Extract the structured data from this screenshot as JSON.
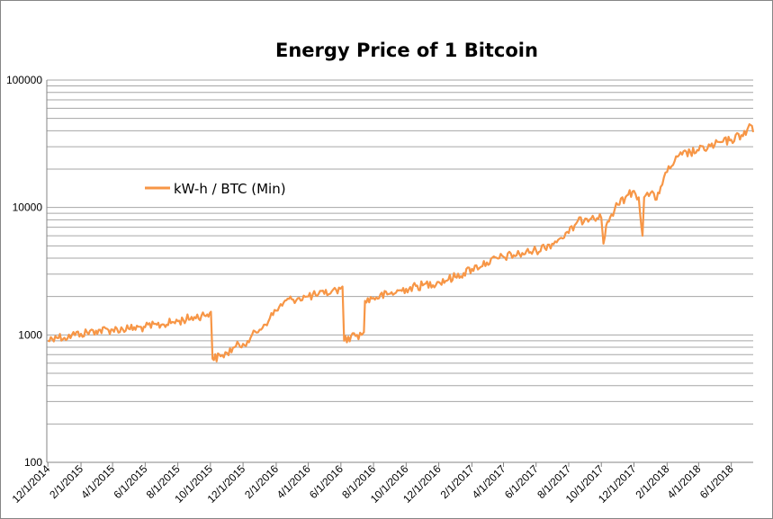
{
  "chart_data": {
    "type": "line",
    "title": "Energy Price of 1 Bitcoin",
    "xlabel": "",
    "ylabel": "",
    "yscale": "log",
    "ylim": [
      100,
      100000
    ],
    "y_ticks": [
      "100",
      "1000",
      "10000",
      "100000"
    ],
    "x_range": [
      "11/29/2014",
      "7/12/2018"
    ],
    "x_ticks": [
      "12/1/2014",
      "2/1/2015",
      "4/1/2015",
      "6/1/2015",
      "8/1/2015",
      "10/1/2015",
      "12/1/2015",
      "2/1/2016",
      "4/1/2016",
      "6/1/2016",
      "8/1/2016",
      "10/1/2016",
      "12/1/2016",
      "2/1/2017",
      "4/1/2017",
      "6/1/2017",
      "8/1/2017",
      "10/1/2017",
      "12/1/2017",
      "2/1/2018",
      "4/1/2018",
      "6/1/2018"
    ],
    "grid": true,
    "legend_position": "left",
    "series": [
      {
        "name": "kW-h / BTC (Min)",
        "color": "#F79646",
        "points": [
          [
            "2014-12-01",
            900
          ],
          [
            "2014-12-15",
            980
          ],
          [
            "2015-01-01",
            950
          ],
          [
            "2015-01-15",
            1000
          ],
          [
            "2015-02-01",
            1020
          ],
          [
            "2015-03-01",
            1080
          ],
          [
            "2015-04-01",
            1100
          ],
          [
            "2015-05-01",
            1120
          ],
          [
            "2015-06-01",
            1150
          ],
          [
            "2015-07-01",
            1200
          ],
          [
            "2015-08-01",
            1280
          ],
          [
            "2015-09-01",
            1380
          ],
          [
            "2015-09-25",
            1450
          ],
          [
            "2015-10-02",
            1520
          ],
          [
            "2015-10-05",
            650
          ],
          [
            "2015-10-20",
            680
          ],
          [
            "2015-11-01",
            720
          ],
          [
            "2015-11-15",
            800
          ],
          [
            "2015-12-01",
            850
          ],
          [
            "2015-12-15",
            950
          ],
          [
            "2016-01-01",
            1100
          ],
          [
            "2016-01-20",
            1350
          ],
          [
            "2016-02-01",
            1550
          ],
          [
            "2016-02-15",
            1800
          ],
          [
            "2016-03-01",
            1900
          ],
          [
            "2016-03-15",
            1950
          ],
          [
            "2016-04-01",
            2000
          ],
          [
            "2016-04-15",
            2050
          ],
          [
            "2016-05-01",
            2100
          ],
          [
            "2016-05-15",
            2200
          ],
          [
            "2016-05-31",
            2300
          ],
          [
            "2016-06-04",
            2400
          ],
          [
            "2016-06-07",
            900
          ],
          [
            "2016-06-20",
            980
          ],
          [
            "2016-07-01",
            1000
          ],
          [
            "2016-07-10",
            1000
          ],
          [
            "2016-07-14",
            1050
          ],
          [
            "2016-07-16",
            1850
          ],
          [
            "2016-08-01",
            1950
          ],
          [
            "2016-09-01",
            2100
          ],
          [
            "2016-10-01",
            2300
          ],
          [
            "2016-11-01",
            2450
          ],
          [
            "2016-12-01",
            2600
          ],
          [
            "2017-01-01",
            2850
          ],
          [
            "2017-02-01",
            3300
          ],
          [
            "2017-03-01",
            3700
          ],
          [
            "2017-04-01",
            4100
          ],
          [
            "2017-05-01",
            4300
          ],
          [
            "2017-06-01",
            4600
          ],
          [
            "2017-07-01",
            5200
          ],
          [
            "2017-07-15",
            5700
          ],
          [
            "2017-08-01",
            6300
          ],
          [
            "2017-08-15",
            7500
          ],
          [
            "2017-09-01",
            8200
          ],
          [
            "2017-09-15",
            8600
          ],
          [
            "2017-10-01",
            8300
          ],
          [
            "2017-10-05",
            5200
          ],
          [
            "2017-10-10",
            7200
          ],
          [
            "2017-10-20",
            8800
          ],
          [
            "2017-11-01",
            10500
          ],
          [
            "2017-11-15",
            12000
          ],
          [
            "2017-12-01",
            13500
          ],
          [
            "2017-12-10",
            12000
          ],
          [
            "2017-12-17",
            6000
          ],
          [
            "2017-12-20",
            12000
          ],
          [
            "2018-01-01",
            13000
          ],
          [
            "2018-01-10",
            11500
          ],
          [
            "2018-01-20",
            14500
          ],
          [
            "2018-02-01",
            19000
          ],
          [
            "2018-02-15",
            23000
          ],
          [
            "2018-03-01",
            26000
          ],
          [
            "2018-04-01",
            28000
          ],
          [
            "2018-05-01",
            31000
          ],
          [
            "2018-06-01",
            34000
          ],
          [
            "2018-06-20",
            37000
          ],
          [
            "2018-07-01",
            41000
          ],
          [
            "2018-07-05",
            45000
          ],
          [
            "2018-07-12",
            39000
          ]
        ]
      }
    ]
  }
}
